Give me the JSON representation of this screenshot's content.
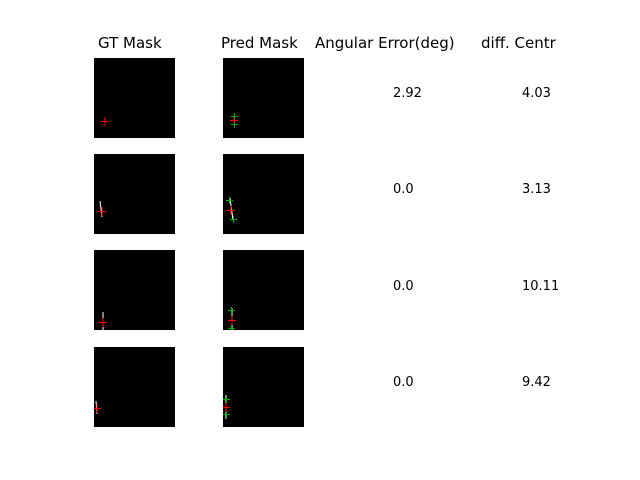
{
  "headers": {
    "gt": "GT Mask",
    "pred": "Pred Mask",
    "angular": "Angular Error(deg)",
    "diff": "diff. Centr"
  },
  "colors": {
    "background": "#000000",
    "gt_marker": "#ff0000",
    "pred_marker": "#00b000",
    "line": "#ffffff"
  },
  "chart_data": {
    "type": "table",
    "columns": [
      "GT Mask",
      "Pred Mask",
      "Angular Error(deg)",
      "diff. Centr"
    ],
    "rows": [
      {
        "angular_error": "2.92",
        "diff_centr": "4.03"
      },
      {
        "angular_error": "0.0",
        "diff_centr": "3.13"
      },
      {
        "angular_error": "0.0",
        "diff_centr": "10.11"
      },
      {
        "angular_error": "0.0",
        "diff_centr": "9.42"
      }
    ]
  }
}
